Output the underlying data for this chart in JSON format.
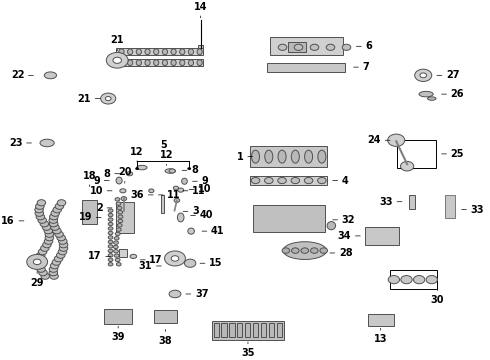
{
  "title": "",
  "background_color": "#ffffff",
  "figure_width": 4.9,
  "figure_height": 3.6,
  "dpi": 100,
  "label_fontsize": 7,
  "line_color": "#000000",
  "text_color": "#000000"
}
